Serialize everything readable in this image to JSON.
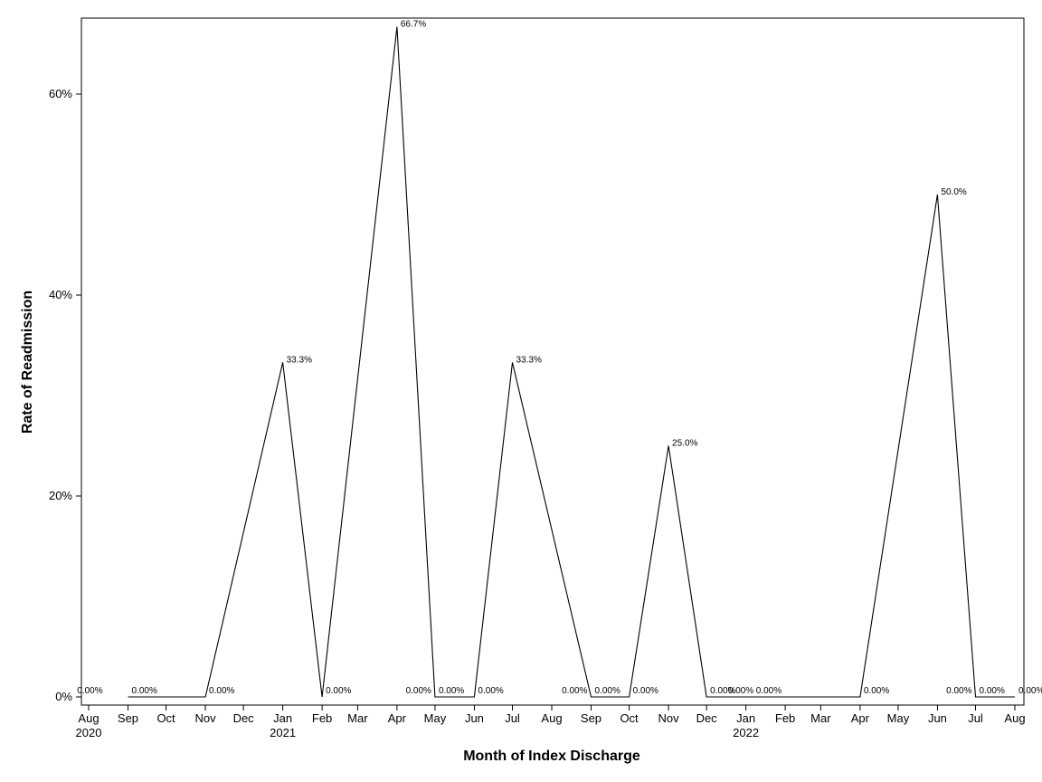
{
  "chart_data": {
    "type": "line",
    "title": "",
    "xlabel": "Month of Index Discharge",
    "ylabel": "Rate of Readmission",
    "ylim": [
      0,
      0.67
    ],
    "yticks": [
      0,
      0.2,
      0.4,
      0.6
    ],
    "ytick_labels": [
      "0%",
      "20%",
      "40%",
      "60%"
    ],
    "x_tick_labels": [
      "Aug",
      "Sep",
      "Oct",
      "Nov",
      "Dec",
      "Jan",
      "Feb",
      "Mar",
      "Apr",
      "May",
      "Jun",
      "Jul",
      "Aug",
      "Sep",
      "Oct",
      "Nov",
      "Dec",
      "Jan",
      "Feb",
      "Mar",
      "Apr",
      "May",
      "Jun",
      "Jul",
      "Aug"
    ],
    "x_tick_dates": [
      "2020-08-01",
      "2020-09-01",
      "2020-10-01",
      "2020-11-01",
      "2020-12-01",
      "2021-01-01",
      "2021-02-01",
      "2021-03-01",
      "2021-04-01",
      "2021-05-01",
      "2021-06-01",
      "2021-07-01",
      "2021-08-01",
      "2021-09-01",
      "2021-10-01",
      "2021-11-01",
      "2021-12-01",
      "2022-01-01",
      "2022-02-01",
      "2022-03-01",
      "2022-04-01",
      "2022-05-01",
      "2022-06-01",
      "2022-07-01",
      "2022-08-01"
    ],
    "year_labels": [
      {
        "date": "2020-08-01",
        "label": "2020"
      },
      {
        "date": "2021-01-01",
        "label": "2021"
      },
      {
        "date": "2022-01-01",
        "label": "2022"
      }
    ],
    "grid": false,
    "legend": "none",
    "line_color": "#000000",
    "points": [
      {
        "date": "2020-09-01",
        "value": 0.0,
        "label": "0.00%"
      },
      {
        "date": "2020-11-01",
        "value": 0.0,
        "label": "0.00%"
      },
      {
        "date": "2021-01-01",
        "value": 0.333,
        "label": "33.3%"
      },
      {
        "date": "2021-02-01",
        "value": 0.0,
        "label": "0.00%"
      },
      {
        "date": "2021-04-01",
        "value": 0.667,
        "label": "66.7%"
      },
      {
        "date": "2021-05-01",
        "value": 0.0,
        "label": "0.00%"
      },
      {
        "date": "2021-06-01",
        "value": 0.0,
        "label": "0.00%"
      },
      {
        "date": "2021-07-01",
        "value": 0.333,
        "label": "33.3%"
      },
      {
        "date": "2021-09-01",
        "value": 0.0,
        "label": "0.00%"
      },
      {
        "date": "2021-10-01",
        "value": 0.0,
        "label": "0.00%"
      },
      {
        "date": "2021-11-01",
        "value": 0.25,
        "label": "25.0%"
      },
      {
        "date": "2021-12-01",
        "value": 0.0,
        "label": "0.00%"
      },
      {
        "date": "2022-04-01",
        "value": 0.0,
        "label": "0.00%"
      },
      {
        "date": "2022-06-01",
        "value": 0.5,
        "label": "50.0%"
      },
      {
        "date": "2022-07-01",
        "value": 0.0,
        "label": "0.00%"
      },
      {
        "date": "2022-08-01",
        "value": 0.0,
        "label": "0.00%"
      }
    ],
    "extra_labels": [
      {
        "date": "2020-08-15",
        "label": "0.00%"
      },
      {
        "date": "2021-05-01",
        "label": "0.00%"
      },
      {
        "date": "2021-09-01",
        "label": "0.00%"
      },
      {
        "date": "2022-01-10",
        "label": "0.00%"
      },
      {
        "date": "2022-02-01",
        "label": "0.00%"
      },
      {
        "date": "2022-07-01",
        "label": "0.00%"
      }
    ]
  }
}
